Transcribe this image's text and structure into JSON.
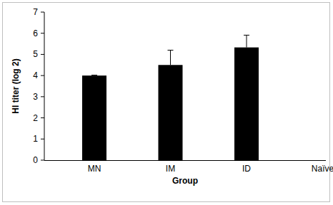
{
  "chart_data": {
    "type": "bar",
    "x_label": "Group",
    "y_label": "HI titer (log 2)",
    "categories": [
      "MN",
      "IM",
      "ID",
      "Naïve"
    ],
    "values": [
      4.0,
      4.5,
      5.33,
      0
    ],
    "errors": [
      0.02,
      0.7,
      0.58,
      0
    ],
    "color": "#000000",
    "ylim": [
      0,
      7
    ],
    "yticks": [
      0,
      1,
      2,
      3,
      4,
      5,
      6,
      7
    ],
    "grid": false
  }
}
